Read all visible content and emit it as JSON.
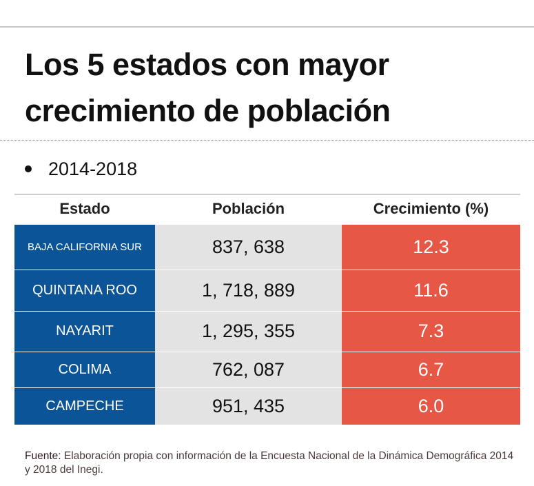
{
  "title_line1": "Los 5 estados con mayor",
  "title_line2": "crecimiento de población",
  "subtitle": "2014-2018",
  "chart_data": {
    "type": "table",
    "columns": [
      "Estado",
      "Población",
      "Crecimiento (%)"
    ],
    "rows": [
      {
        "estado": "BAJA CALIFORNIA SUR",
        "poblacion": "837, 638",
        "crecimiento": "12.3"
      },
      {
        "estado": "QUINTANA ROO",
        "poblacion": "1, 718, 889",
        "crecimiento": "11.6"
      },
      {
        "estado": "NAYARIT",
        "poblacion": "1, 295, 355",
        "crecimiento": "7.3"
      },
      {
        "estado": "COLIMA",
        "poblacion": "762, 087",
        "crecimiento": "6.7"
      },
      {
        "estado": "CAMPECHE",
        "poblacion": "951, 435",
        "crecimiento": "6.0"
      }
    ],
    "colors": {
      "estado": "#0b5497",
      "poblacion": "#e3e3e3",
      "crecimiento": "#e65745"
    }
  },
  "footer": {
    "label": "Fuente:",
    "text": " Elaboración propia con información de la Encuesta Nacional de la Dinámica Demográfica 2014 y 2018 del Inegi."
  }
}
